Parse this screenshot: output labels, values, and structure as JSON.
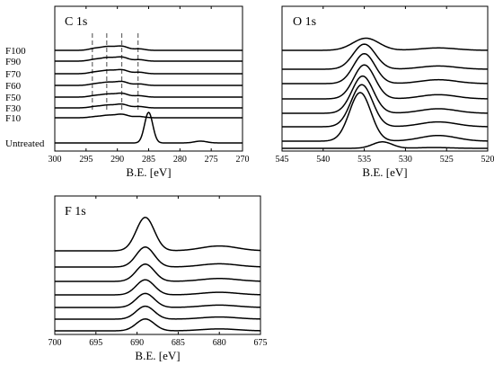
{
  "chart_data": [
    {
      "type": "line",
      "title": "C 1s",
      "xlabel": "B.E. [eV]",
      "ylabel": "",
      "xlim": [
        300,
        270
      ],
      "x_reversed": true,
      "xticks": [
        300,
        295,
        290,
        285,
        280,
        275,
        270
      ],
      "grid": false,
      "legend": "left-side labels",
      "guide_lines": [
        294,
        291.7,
        289.3,
        286.7
      ],
      "series": [
        {
          "name": "F100",
          "peaks": [
            [
              293.5,
              0.22,
              1.0
            ],
            [
              291.5,
              0.38,
              1.0
            ],
            [
              289.3,
              0.45,
              1.0
            ],
            [
              286.5,
              0.16,
              0.9
            ]
          ]
        },
        {
          "name": "F90",
          "peaks": [
            [
              293.5,
              0.2,
              1.0
            ],
            [
              291.5,
              0.36,
              1.0
            ],
            [
              289.3,
              0.44,
              1.0
            ],
            [
              286.5,
              0.16,
              0.9
            ]
          ]
        },
        {
          "name": "F70",
          "peaks": [
            [
              293.5,
              0.19,
              1.0
            ],
            [
              291.5,
              0.34,
              1.0
            ],
            [
              289.3,
              0.43,
              1.0
            ],
            [
              286.5,
              0.16,
              0.9
            ]
          ]
        },
        {
          "name": "F60",
          "peaks": [
            [
              293.5,
              0.18,
              1.0
            ],
            [
              291.5,
              0.32,
              1.0
            ],
            [
              289.3,
              0.42,
              1.0
            ],
            [
              286.5,
              0.16,
              0.9
            ]
          ]
        },
        {
          "name": "F50",
          "peaks": [
            [
              293.5,
              0.17,
              1.0
            ],
            [
              291.5,
              0.3,
              1.0
            ],
            [
              289.3,
              0.41,
              1.0
            ],
            [
              286.5,
              0.15,
              0.9
            ]
          ]
        },
        {
          "name": "F30",
          "peaks": [
            [
              293.5,
              0.15,
              1.0
            ],
            [
              291.5,
              0.28,
              1.0
            ],
            [
              289.3,
              0.4,
              1.0
            ],
            [
              286.5,
              0.15,
              0.9
            ]
          ]
        },
        {
          "name": "F10",
          "peaks": [
            [
              293.5,
              0.12,
              1.0
            ],
            [
              291.5,
              0.25,
              1.0
            ],
            [
              289.3,
              0.38,
              1.0
            ],
            [
              286.5,
              0.14,
              0.9
            ]
          ]
        },
        {
          "name": "Untreated",
          "peaks": [
            [
              285.0,
              3.4,
              0.65
            ],
            [
              276.7,
              0.2,
              1.0
            ]
          ]
        }
      ]
    },
    {
      "type": "line",
      "title": "O 1s",
      "xlabel": "B.E. [eV]",
      "ylabel": "",
      "xlim": [
        545,
        520
      ],
      "x_reversed": true,
      "xticks": [
        545,
        540,
        535,
        530,
        525,
        520
      ],
      "grid": false,
      "series": [
        {
          "peaks": [
            [
              534.8,
              0.75,
              1.6
            ],
            [
              526.0,
              0.15,
              2.2
            ]
          ]
        },
        {
          "peaks": [
            [
              535.0,
              1.55,
              1.35
            ],
            [
              526.0,
              0.2,
              2.2
            ]
          ]
        },
        {
          "peaks": [
            [
              535.0,
              1.85,
              1.3
            ],
            [
              526.0,
              0.24,
              2.2
            ]
          ]
        },
        {
          "peaks": [
            [
              535.0,
              2.1,
              1.3
            ],
            [
              526.0,
              0.26,
              2.2
            ]
          ]
        },
        {
          "peaks": [
            [
              535.2,
              2.3,
              1.3
            ],
            [
              526.0,
              0.28,
              2.2
            ]
          ]
        },
        {
          "peaks": [
            [
              535.3,
              2.6,
              1.3
            ],
            [
              526.0,
              0.3,
              2.2
            ]
          ]
        },
        {
          "peaks": [
            [
              535.5,
              3.0,
              1.3
            ],
            [
              526.0,
              0.35,
              2.2
            ]
          ]
        },
        {
          "peaks": [
            [
              532.8,
              0.4,
              1.2
            ],
            [
              526.5,
              0.05,
              2.0
            ]
          ]
        }
      ]
    },
    {
      "type": "line",
      "title": "F 1s",
      "xlabel": "B.E. [eV]",
      "ylabel": "",
      "xlim": [
        700,
        675
      ],
      "x_reversed": true,
      "xticks": [
        700,
        695,
        690,
        685,
        680,
        675
      ],
      "grid": false,
      "series": [
        {
          "peaks": [
            [
              689.0,
              3.1,
              1.1
            ],
            [
              680.0,
              0.45,
              2.2
            ]
          ]
        },
        {
          "peaks": [
            [
              689.0,
              1.85,
              1.1
            ],
            [
              680.0,
              0.3,
              2.2
            ]
          ]
        },
        {
          "peaks": [
            [
              689.0,
              1.6,
              1.1
            ],
            [
              680.0,
              0.27,
              2.2
            ]
          ]
        },
        {
          "peaks": [
            [
              689.0,
              1.4,
              1.1
            ],
            [
              680.0,
              0.24,
              2.2
            ]
          ]
        },
        {
          "peaks": [
            [
              689.0,
              1.3,
              1.1
            ],
            [
              680.0,
              0.22,
              2.2
            ]
          ]
        },
        {
          "peaks": [
            [
              689.0,
              1.2,
              1.1
            ],
            [
              680.0,
              0.2,
              2.2
            ]
          ]
        },
        {
          "peaks": [
            [
              689.0,
              1.1,
              1.1
            ],
            [
              680.0,
              0.18,
              2.2
            ]
          ]
        }
      ]
    }
  ]
}
